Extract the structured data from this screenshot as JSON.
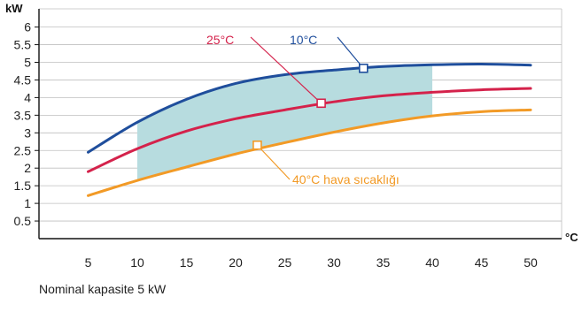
{
  "chart_data": {
    "type": "line",
    "ylabel": "kW",
    "xlabel": "°C",
    "xlim": [
      0,
      55
    ],
    "ylim": [
      0,
      6.5
    ],
    "xticks": [
      5,
      10,
      15,
      20,
      25,
      30,
      35,
      40,
      45,
      50
    ],
    "yticks": [
      0.5,
      1,
      1.5,
      2,
      2.5,
      3,
      3.5,
      4,
      4.5,
      5,
      5.5,
      6
    ],
    "x_tick_labels": [
      "5",
      "10",
      "15",
      "20",
      "25",
      "30",
      "35",
      "40",
      "45",
      "50"
    ],
    "y_tick_labels": [
      "0.5",
      "1",
      "1.5",
      "2",
      "2.5",
      "3",
      "3.5",
      "4",
      "4.5",
      "5",
      "5.5",
      "6"
    ],
    "grid": true,
    "x": [
      5,
      10,
      15,
      20,
      25,
      30,
      35,
      40,
      45,
      50
    ],
    "series": [
      {
        "name": "10°C",
        "color": "#1f4e9c",
        "values": [
          2.45,
          3.3,
          3.95,
          4.4,
          4.65,
          4.78,
          4.88,
          4.93,
          4.95,
          4.92
        ],
        "marker": [
          33,
          4.83
        ]
      },
      {
        "name": "25°C",
        "color": "#d4224b",
        "values": [
          1.9,
          2.55,
          3.05,
          3.4,
          3.65,
          3.88,
          4.05,
          4.15,
          4.22,
          4.26
        ],
        "marker": [
          28.7,
          3.84
        ]
      },
      {
        "name": "40°C hava sıcaklığı",
        "color": "#f29a26",
        "values": [
          1.22,
          1.65,
          2.03,
          2.4,
          2.72,
          3.02,
          3.28,
          3.48,
          3.6,
          3.65
        ],
        "marker": [
          22.2,
          2.65
        ]
      }
    ],
    "shaded_region": {
      "x_from": 10,
      "x_to": 40,
      "color": "#b7dcdf"
    }
  },
  "labels": {
    "y_unit": "kW",
    "x_unit": "°C",
    "series_10": "10°C",
    "series_25": "25°C",
    "series_40": "40°C hava sıcaklığı"
  },
  "caption": "Nominal kapasite 5 kW"
}
